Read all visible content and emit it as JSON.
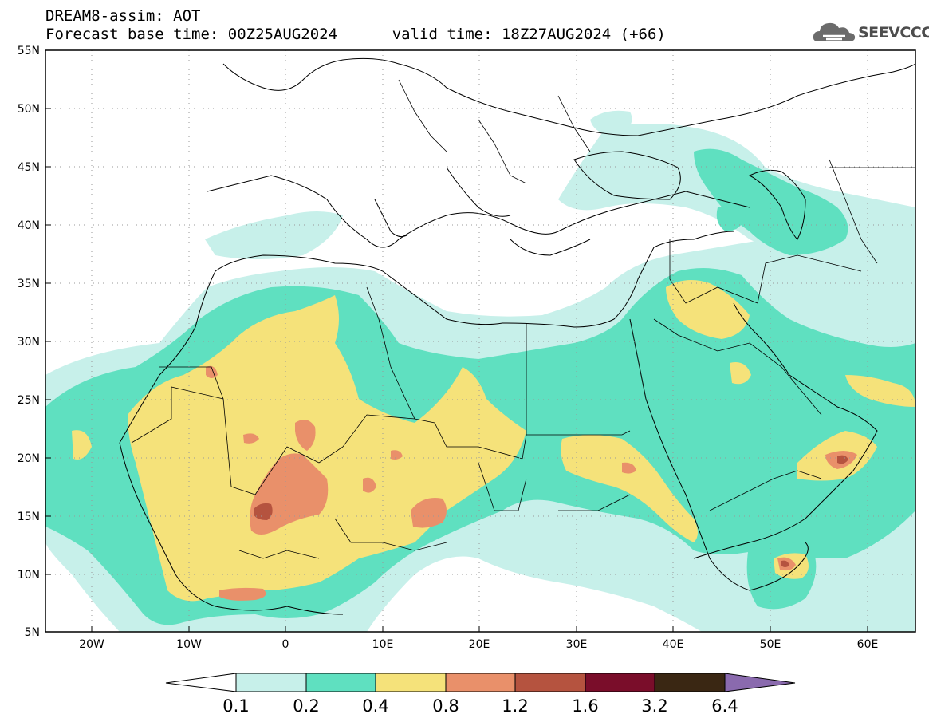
{
  "header": {
    "model_line": "DREAM8-assim: AOT",
    "base_time": "Forecast base time: 00Z25AUG2024",
    "valid_time": "valid time: 18Z27AUG2024 (+66)"
  },
  "logo": {
    "text": "SEEVCCC",
    "icon": "cloud-icon"
  },
  "map": {
    "lat_labels": [
      "55N",
      "50N",
      "45N",
      "40N",
      "35N",
      "30N",
      "25N",
      "20N",
      "15N",
      "10N",
      "5N"
    ],
    "lon_labels": [
      "20W",
      "10W",
      "0",
      "10E",
      "20E",
      "30E",
      "40E",
      "50E",
      "60E"
    ]
  },
  "colorbar": {
    "labels": [
      "0.1",
      "0.2",
      "0.4",
      "0.8",
      "1.2",
      "1.6",
      "3.2",
      "6.4"
    ],
    "colors": {
      "c0": "#c7f0ea",
      "c1": "#5fe0c0",
      "c2": "#f5e27a",
      "c3": "#e9906a",
      "c4": "#b5533f",
      "c5": "#7a0d2a",
      "c6": "#3a2713",
      "over": "#8a6aae"
    }
  }
}
